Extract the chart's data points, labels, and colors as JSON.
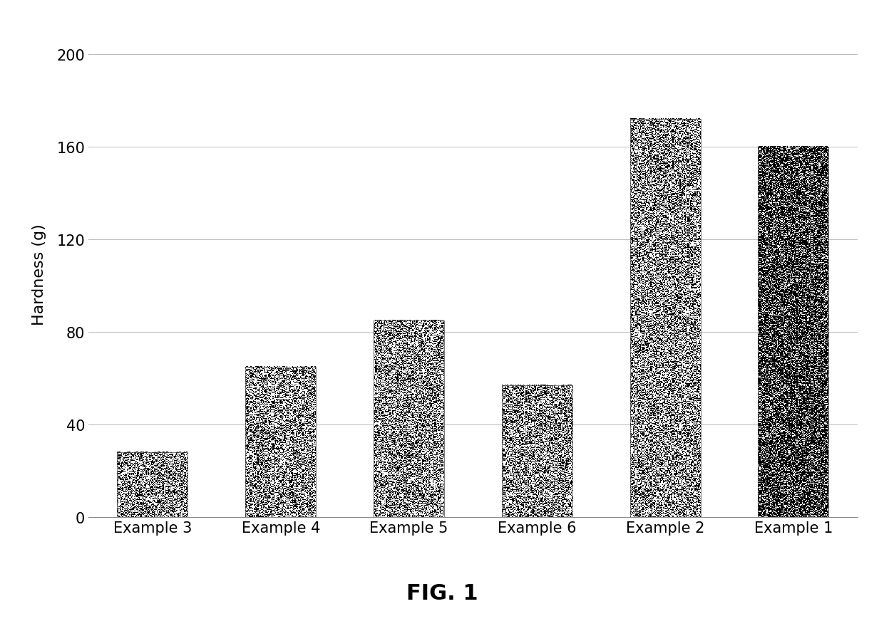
{
  "categories": [
    "Example 3",
    "Example 4",
    "Example 5",
    "Example 6",
    "Example 2",
    "Example 1"
  ],
  "values": [
    28,
    65,
    85,
    57,
    172,
    160
  ],
  "light_bar_density": 0.45,
  "dark_bar_density": 0.72,
  "ylabel": "Hardness (g)",
  "ylim": [
    0,
    210
  ],
  "yticks": [
    0,
    40,
    80,
    120,
    160,
    200
  ],
  "title": "FIG. 1",
  "title_fontsize": 22,
  "ylabel_fontsize": 16,
  "tick_fontsize": 15,
  "background_color": "#ffffff",
  "grid_color": "#bbbbbb",
  "bar_width": 0.55
}
